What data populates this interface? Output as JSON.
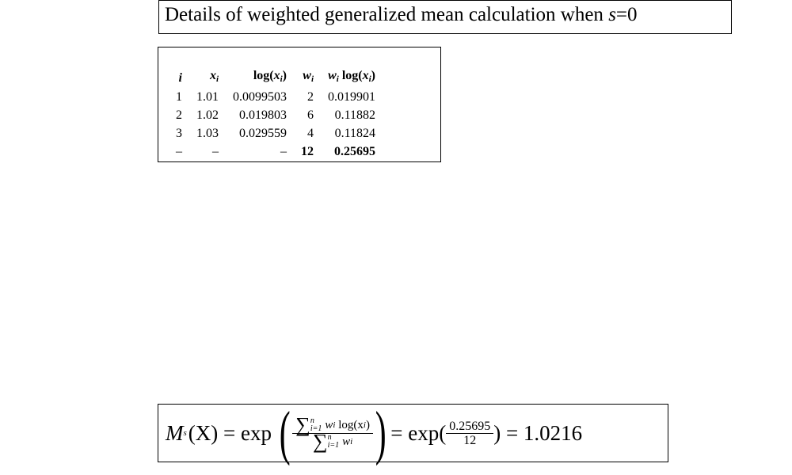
{
  "title": {
    "prefix": "Details of weighted generalized mean calculation when ",
    "var": "s",
    "suffix": "=0"
  },
  "table": {
    "headers": [
      "i",
      "x_i",
      "log(x_i)",
      "w_i",
      "w_i log(x_i)"
    ],
    "rows": [
      [
        "1",
        "1.01",
        "0.0099503",
        "2",
        "0.019901"
      ],
      [
        "2",
        "1.02",
        "0.019803",
        "6",
        "0.11882"
      ],
      [
        "3",
        "1.03",
        "0.029559",
        "4",
        "0.11824"
      ]
    ],
    "total_row": [
      "–",
      "–",
      "–",
      "12",
      "0.25695"
    ]
  },
  "formula": {
    "lhs": "M",
    "lhs_sub": "s",
    "lhs_arg": "(X) = exp",
    "sum_upper": "n",
    "sum_lower": "i=1",
    "num_term": "w",
    "num_term_sub": "i",
    "num_log": "log(x",
    "num_log_sub": "i",
    "den_term": "w",
    "den_term_sub": "i",
    "mid": "= exp(",
    "frac_num": "0.25695",
    "frac_den": "12",
    "result": ") = 1.0216"
  }
}
